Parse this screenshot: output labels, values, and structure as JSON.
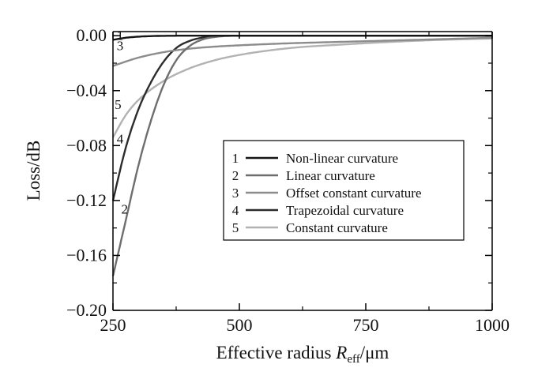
{
  "chart_data": {
    "type": "line",
    "title": "",
    "xlabel": {
      "main": "Effective radius ",
      "symbol": "R",
      "subscript": "eff",
      "unit": "/μm"
    },
    "ylabel": "Loss/dB",
    "xlim": [
      250,
      1000
    ],
    "ylim": [
      -0.2,
      0.01
    ],
    "x_ticks": [
      250,
      500,
      750,
      1000
    ],
    "x_tick_labels": [
      "250",
      "500",
      "750",
      "1000"
    ],
    "y_ticks": [
      0.0,
      -0.04,
      -0.08,
      -0.12,
      -0.16,
      -0.2
    ],
    "y_tick_labels": [
      "0.00",
      "−0.04",
      "−0.08",
      "−0.12",
      "−0.16",
      "−0.20"
    ],
    "grid": false,
    "legend_position": "center-right",
    "series": [
      {
        "id": "1",
        "name": "Non-linear curvature",
        "color": "#151515",
        "label_at": [
          0.0005,
          264
        ],
        "x": [
          250,
          275,
          300,
          325,
          350,
          400,
          500,
          750,
          1000
        ],
        "y": [
          -0.003,
          -0.0015,
          -0.0007,
          -0.0003,
          -0.0001,
          0.0,
          0.0,
          0.0,
          0.0
        ]
      },
      {
        "id": "2",
        "name": "Linear curvature",
        "color": "#6e6e6e",
        "label_at": [
          -0.126,
          273
        ],
        "x": [
          250,
          275,
          300,
          325,
          350,
          375,
          400,
          425,
          450,
          500,
          600,
          750,
          1000
        ],
        "y": [
          -0.175,
          -0.135,
          -0.095,
          -0.062,
          -0.036,
          -0.018,
          -0.008,
          -0.003,
          -0.001,
          0.0,
          0.0,
          0.0,
          0.0
        ]
      },
      {
        "id": "3",
        "name": "Offset constant curvature",
        "color": "#8c8c8c",
        "label_at": [
          -0.007,
          264
        ],
        "x": [
          250,
          300,
          350,
          400,
          450,
          500,
          600,
          700,
          800,
          900,
          1000
        ],
        "y": [
          -0.022,
          -0.016,
          -0.012,
          -0.0095,
          -0.008,
          -0.007,
          -0.0055,
          -0.0045,
          -0.0035,
          -0.0025,
          -0.0015
        ]
      },
      {
        "id": "4",
        "name": "Trapezoidal curvature",
        "color": "#2c2c2c",
        "label_at": [
          -0.075,
          264
        ],
        "x": [
          250,
          275,
          300,
          325,
          350,
          375,
          400,
          425,
          450,
          500,
          600,
          750,
          1000
        ],
        "y": [
          -0.12,
          -0.082,
          -0.054,
          -0.034,
          -0.019,
          -0.009,
          -0.004,
          -0.0015,
          -0.0003,
          0.0,
          0.0,
          0.0,
          0.0
        ]
      },
      {
        "id": "5",
        "name": "Constant curvature",
        "color": "#b2b2b2",
        "label_at": [
          -0.05,
          260
        ],
        "x": [
          250,
          275,
          300,
          350,
          400,
          450,
          500,
          600,
          700,
          800,
          900,
          1000
        ],
        "y": [
          -0.074,
          -0.058,
          -0.047,
          -0.033,
          -0.024,
          -0.018,
          -0.014,
          -0.009,
          -0.0065,
          -0.0045,
          -0.003,
          -0.002
        ]
      }
    ]
  }
}
